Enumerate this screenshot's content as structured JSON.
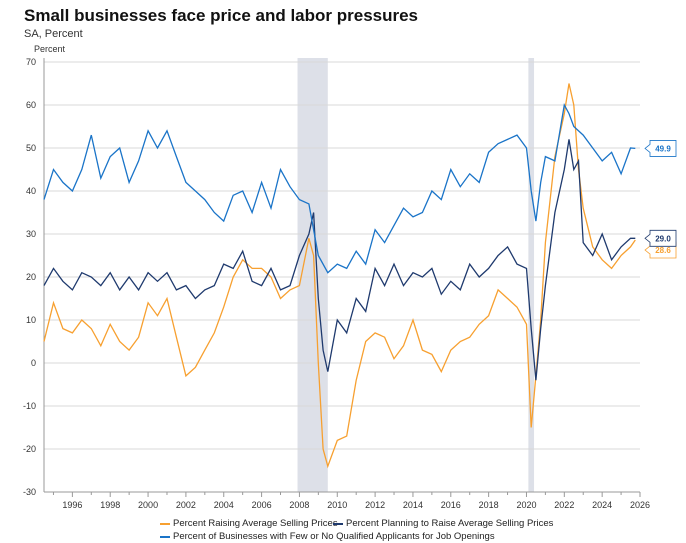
{
  "title": "Small businesses face price and labor pressures",
  "subtitle": "SA, Percent",
  "chart_data": {
    "type": "line",
    "ylabel": "Percent",
    "ylim": [
      -30,
      70
    ],
    "yticks": [
      -30,
      -20,
      -10,
      0,
      10,
      20,
      30,
      40,
      50,
      60,
      70
    ],
    "xlim": [
      1994.5,
      2026
    ],
    "xticks": [
      1996,
      1998,
      2000,
      2002,
      2004,
      2006,
      2008,
      2010,
      2012,
      2014,
      2016,
      2018,
      2020,
      2022,
      2024,
      2026
    ],
    "grid": true,
    "legend_position": "bottom",
    "recessions": [
      [
        2007.9,
        2009.5
      ],
      [
        2020.1,
        2020.4
      ]
    ],
    "recession_color": "#dde0e8",
    "series": [
      {
        "name": "Percent Raising Average Selling Prices",
        "color": "#f7a030",
        "last_label": "28.6",
        "points": [
          [
            1994.5,
            5
          ],
          [
            1995,
            14
          ],
          [
            1995.5,
            8
          ],
          [
            1996,
            7
          ],
          [
            1996.5,
            10
          ],
          [
            1997,
            8
          ],
          [
            1997.5,
            4
          ],
          [
            1998,
            9
          ],
          [
            1998.5,
            5
          ],
          [
            1999,
            3
          ],
          [
            1999.5,
            6
          ],
          [
            2000,
            14
          ],
          [
            2000.5,
            11
          ],
          [
            2001,
            15
          ],
          [
            2001.5,
            6
          ],
          [
            2002,
            -3
          ],
          [
            2002.5,
            -1
          ],
          [
            2003,
            3
          ],
          [
            2003.5,
            7
          ],
          [
            2004,
            13
          ],
          [
            2004.5,
            20
          ],
          [
            2005,
            24
          ],
          [
            2005.5,
            22
          ],
          [
            2006,
            22
          ],
          [
            2006.5,
            20
          ],
          [
            2007,
            15
          ],
          [
            2007.5,
            17
          ],
          [
            2008,
            18
          ],
          [
            2008.5,
            29
          ],
          [
            2008.75,
            25
          ],
          [
            2009,
            0
          ],
          [
            2009.25,
            -20
          ],
          [
            2009.5,
            -24
          ],
          [
            2010,
            -18
          ],
          [
            2010.5,
            -17
          ],
          [
            2011,
            -4
          ],
          [
            2011.5,
            5
          ],
          [
            2012,
            7
          ],
          [
            2012.5,
            6
          ],
          [
            2013,
            1
          ],
          [
            2013.5,
            4
          ],
          [
            2014,
            10
          ],
          [
            2014.5,
            3
          ],
          [
            2015,
            2
          ],
          [
            2015.5,
            -2
          ],
          [
            2016,
            3
          ],
          [
            2016.5,
            5
          ],
          [
            2017,
            6
          ],
          [
            2017.5,
            9
          ],
          [
            2018,
            11
          ],
          [
            2018.5,
            17
          ],
          [
            2019,
            15
          ],
          [
            2019.5,
            13
          ],
          [
            2020,
            9
          ],
          [
            2020.25,
            -15
          ],
          [
            2020.5,
            -3
          ],
          [
            2020.75,
            10
          ],
          [
            2021,
            28
          ],
          [
            2021.5,
            48
          ],
          [
            2022,
            58
          ],
          [
            2022.25,
            65
          ],
          [
            2022.5,
            60
          ],
          [
            2022.75,
            45
          ],
          [
            2023,
            36
          ],
          [
            2023.5,
            27
          ],
          [
            2024,
            24
          ],
          [
            2024.5,
            22
          ],
          [
            2025,
            25
          ],
          [
            2025.5,
            27
          ],
          [
            2025.75,
            28.6
          ]
        ]
      },
      {
        "name": "Percent Planning to Raise Average Selling Prices",
        "color": "#1f3a6e",
        "last_label": "29.0",
        "points": [
          [
            1994.5,
            18
          ],
          [
            1995,
            22
          ],
          [
            1995.5,
            19
          ],
          [
            1996,
            17
          ],
          [
            1996.5,
            21
          ],
          [
            1997,
            20
          ],
          [
            1997.5,
            18
          ],
          [
            1998,
            21
          ],
          [
            1998.5,
            17
          ],
          [
            1999,
            20
          ],
          [
            1999.5,
            17
          ],
          [
            2000,
            21
          ],
          [
            2000.5,
            19
          ],
          [
            2001,
            21
          ],
          [
            2001.5,
            17
          ],
          [
            2002,
            18
          ],
          [
            2002.5,
            15
          ],
          [
            2003,
            17
          ],
          [
            2003.5,
            18
          ],
          [
            2004,
            23
          ],
          [
            2004.5,
            22
          ],
          [
            2005,
            26
          ],
          [
            2005.5,
            19
          ],
          [
            2006,
            18
          ],
          [
            2006.5,
            22
          ],
          [
            2007,
            17
          ],
          [
            2007.5,
            18
          ],
          [
            2008,
            25
          ],
          [
            2008.5,
            30
          ],
          [
            2008.75,
            35
          ],
          [
            2009,
            15
          ],
          [
            2009.25,
            3
          ],
          [
            2009.5,
            -2
          ],
          [
            2010,
            10
          ],
          [
            2010.5,
            7
          ],
          [
            2011,
            15
          ],
          [
            2011.5,
            12
          ],
          [
            2012,
            22
          ],
          [
            2012.5,
            18
          ],
          [
            2013,
            23
          ],
          [
            2013.5,
            18
          ],
          [
            2014,
            21
          ],
          [
            2014.5,
            20
          ],
          [
            2015,
            22
          ],
          [
            2015.5,
            16
          ],
          [
            2016,
            19
          ],
          [
            2016.5,
            17
          ],
          [
            2017,
            23
          ],
          [
            2017.5,
            20
          ],
          [
            2018,
            22
          ],
          [
            2018.5,
            25
          ],
          [
            2019,
            27
          ],
          [
            2019.5,
            23
          ],
          [
            2020,
            22
          ],
          [
            2020.25,
            8
          ],
          [
            2020.5,
            -4
          ],
          [
            2020.75,
            8
          ],
          [
            2021,
            18
          ],
          [
            2021.5,
            35
          ],
          [
            2022,
            45
          ],
          [
            2022.25,
            52
          ],
          [
            2022.5,
            45
          ],
          [
            2022.75,
            47
          ],
          [
            2023,
            28
          ],
          [
            2023.5,
            25
          ],
          [
            2024,
            30
          ],
          [
            2024.5,
            24
          ],
          [
            2025,
            27
          ],
          [
            2025.5,
            29
          ],
          [
            2025.75,
            29.0
          ]
        ]
      },
      {
        "name": "Percent of Businesses with Few or No Qualified Applicants for Job Openings",
        "color": "#1a74c8",
        "last_label": "49.9",
        "points": [
          [
            1994.5,
            38
          ],
          [
            1995,
            45
          ],
          [
            1995.5,
            42
          ],
          [
            1996,
            40
          ],
          [
            1996.5,
            45
          ],
          [
            1997,
            53
          ],
          [
            1997.5,
            43
          ],
          [
            1998,
            48
          ],
          [
            1998.5,
            50
          ],
          [
            1999,
            42
          ],
          [
            1999.5,
            47
          ],
          [
            2000,
            54
          ],
          [
            2000.5,
            50
          ],
          [
            2001,
            54
          ],
          [
            2001.5,
            48
          ],
          [
            2002,
            42
          ],
          [
            2002.5,
            40
          ],
          [
            2003,
            38
          ],
          [
            2003.5,
            35
          ],
          [
            2004,
            33
          ],
          [
            2004.5,
            39
          ],
          [
            2005,
            40
          ],
          [
            2005.5,
            35
          ],
          [
            2006,
            42
          ],
          [
            2006.5,
            36
          ],
          [
            2007,
            45
          ],
          [
            2007.5,
            41
          ],
          [
            2008,
            38
          ],
          [
            2008.5,
            37
          ],
          [
            2009,
            25
          ],
          [
            2009.5,
            21
          ],
          [
            2010,
            23
          ],
          [
            2010.5,
            22
          ],
          [
            2011,
            26
          ],
          [
            2011.5,
            23
          ],
          [
            2012,
            31
          ],
          [
            2012.5,
            28
          ],
          [
            2013,
            32
          ],
          [
            2013.5,
            36
          ],
          [
            2014,
            34
          ],
          [
            2014.5,
            35
          ],
          [
            2015,
            40
          ],
          [
            2015.5,
            38
          ],
          [
            2016,
            45
          ],
          [
            2016.5,
            41
          ],
          [
            2017,
            44
          ],
          [
            2017.5,
            42
          ],
          [
            2018,
            49
          ],
          [
            2018.5,
            51
          ],
          [
            2019,
            52
          ],
          [
            2019.5,
            53
          ],
          [
            2020,
            50
          ],
          [
            2020.25,
            40
          ],
          [
            2020.5,
            33
          ],
          [
            2020.75,
            42
          ],
          [
            2021,
            48
          ],
          [
            2021.5,
            47
          ],
          [
            2022,
            60
          ],
          [
            2022.25,
            58
          ],
          [
            2022.5,
            55
          ],
          [
            2023,
            53
          ],
          [
            2023.5,
            50
          ],
          [
            2024,
            47
          ],
          [
            2024.5,
            49
          ],
          [
            2025,
            44
          ],
          [
            2025.5,
            50
          ],
          [
            2025.75,
            49.9
          ]
        ]
      }
    ]
  }
}
